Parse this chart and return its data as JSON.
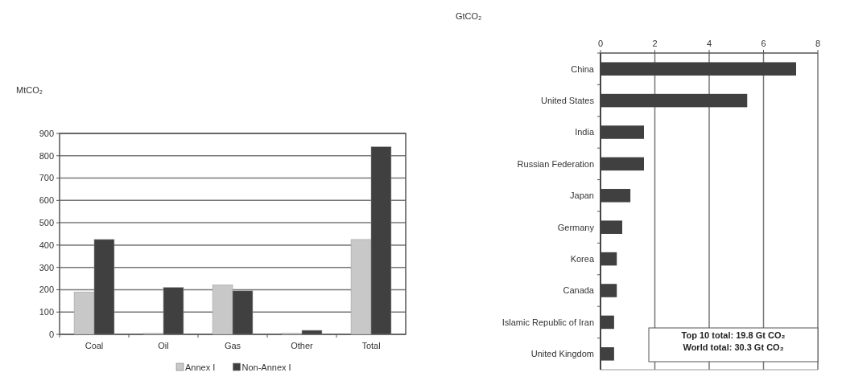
{
  "chart_data": [
    {
      "type": "bar",
      "ylabel": "MtCO₂",
      "categories": [
        "Coal",
        "Oil",
        "Gas",
        "Other",
        "Total"
      ],
      "series": [
        {
          "name": "Annex I",
          "color": "#c8c8c8",
          "values": [
            190,
            5,
            222,
            5,
            425
          ]
        },
        {
          "name": "Non-Annex I",
          "color": "#404040",
          "values": [
            425,
            210,
            195,
            18,
            840
          ]
        }
      ],
      "ylim": [
        0,
        900
      ],
      "yticks": [
        0,
        100,
        200,
        300,
        400,
        500,
        600,
        700,
        800,
        900
      ],
      "grid": "y",
      "legend": "bottom"
    },
    {
      "type": "bar",
      "orientation": "horizontal",
      "xlabel": "GtCO₂",
      "categories": [
        "China",
        "United States",
        "India",
        "Russian Federation",
        "Japan",
        "Germany",
        "Korea",
        "Canada",
        "Islamic Republic of Iran",
        "United Kingdom"
      ],
      "series": [
        {
          "color": "#404040",
          "values": [
            7.2,
            5.4,
            1.6,
            1.6,
            1.1,
            0.8,
            0.6,
            0.6,
            0.5,
            0.5
          ]
        }
      ],
      "xlim": [
        0,
        8
      ],
      "xticks": [
        0,
        2,
        4,
        6,
        8
      ],
      "grid": "x",
      "annotations": [
        "Top 10 total: 19.8 Gt CO₂",
        "World total: 30.3 Gt CO₂"
      ]
    }
  ]
}
